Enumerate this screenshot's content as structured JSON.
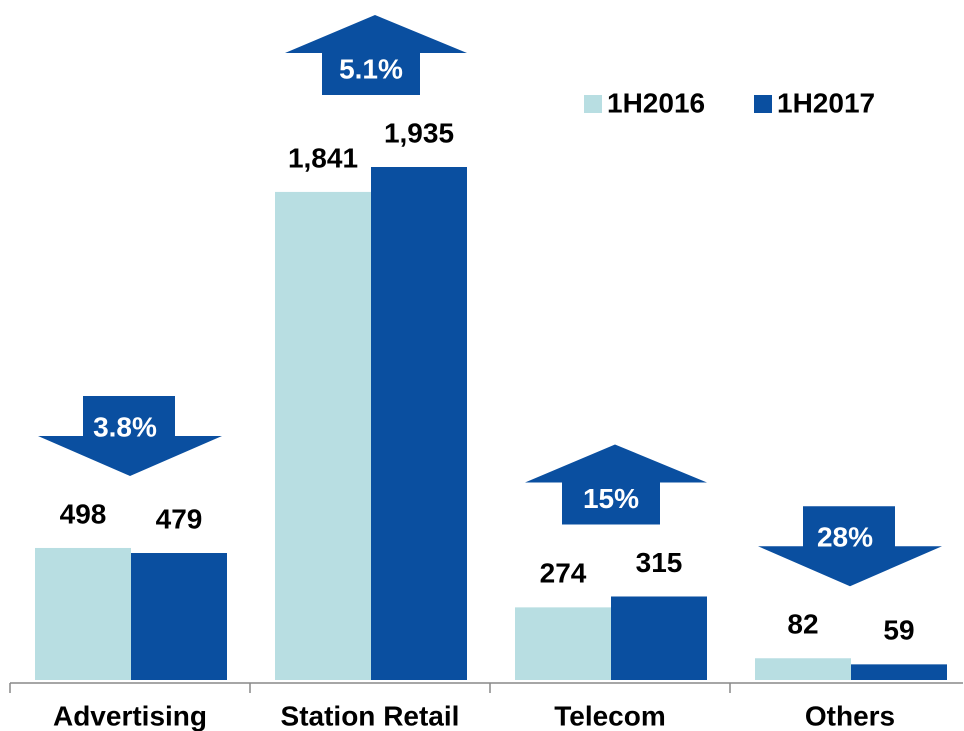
{
  "chart_data": {
    "type": "bar",
    "categories": [
      "Advertising",
      "Station Retail",
      "Telecom",
      "Others"
    ],
    "series": [
      {
        "name": "1H2016",
        "color": "#b8dee2",
        "values": [
          498,
          1841,
          274,
          82
        ],
        "value_labels": [
          "498",
          "1,841",
          "274",
          "82"
        ]
      },
      {
        "name": "1H2017",
        "color": "#0a4fa0",
        "values": [
          479,
          1935,
          315,
          59
        ],
        "value_labels": [
          "479",
          "1,935",
          "315",
          "59"
        ]
      }
    ],
    "annotations": [
      {
        "text": "3.8%",
        "direction": "down"
      },
      {
        "text": "5.1%",
        "direction": "up"
      },
      {
        "text": "15%",
        "direction": "up"
      },
      {
        "text": "28%",
        "direction": "down"
      }
    ],
    "arrow_color": "#0a4fa0",
    "legend": "top-right"
  }
}
